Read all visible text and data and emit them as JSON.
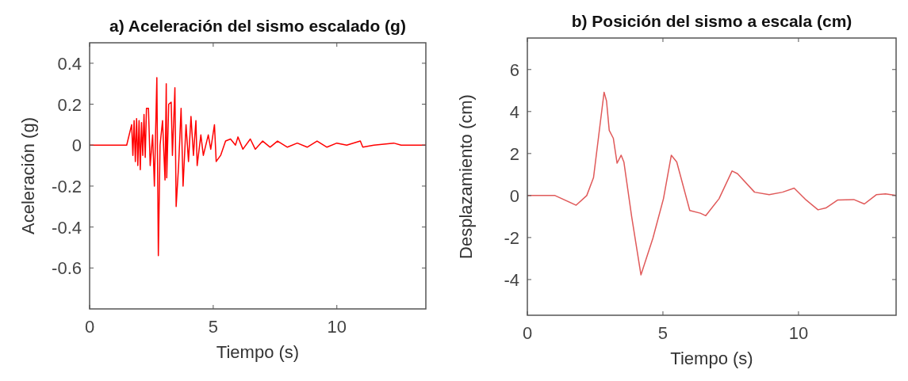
{
  "chart_data": [
    {
      "type": "line",
      "title": "a) Aceleración del sismo escalado (g)",
      "xlabel": "Tiempo (s)",
      "ylabel": "Aceleración (g)",
      "xlim": [
        0,
        13.6
      ],
      "ylim": [
        -0.8,
        0.5
      ],
      "xticks": [
        0,
        5,
        10
      ],
      "yticks": [
        -0.6,
        -0.4,
        -0.2,
        0,
        0.2,
        0.4
      ],
      "series": [
        {
          "color": "#ff0000",
          "x": [
            0,
            1.4,
            1.5,
            1.7,
            1.75,
            1.8,
            1.85,
            1.9,
            1.95,
            2.0,
            2.05,
            2.1,
            2.15,
            2.2,
            2.25,
            2.3,
            2.38,
            2.45,
            2.55,
            2.62,
            2.72,
            2.78,
            2.85,
            2.95,
            3.05,
            3.1,
            3.12,
            3.2,
            3.3,
            3.35,
            3.45,
            3.5,
            3.6,
            3.7,
            3.78,
            3.9,
            4.0,
            4.1,
            4.2,
            4.3,
            4.35,
            4.5,
            4.6,
            4.8,
            4.9,
            5.05,
            5.12,
            5.3,
            5.5,
            5.7,
            5.9,
            6.0,
            6.2,
            6.5,
            6.7,
            7.0,
            7.3,
            7.6,
            8.0,
            8.4,
            8.8,
            9.2,
            9.6,
            10.0,
            10.4,
            10.95,
            11.05,
            11.5,
            12.3,
            12.6,
            13.6
          ],
          "values": [
            0,
            0,
            0,
            0.1,
            -0.05,
            0.12,
            -0.08,
            0.13,
            -0.1,
            0.12,
            -0.12,
            0.11,
            -0.05,
            0.15,
            -0.06,
            0.18,
            0.18,
            -0.1,
            0.05,
            -0.2,
            0.33,
            -0.54,
            0,
            0.12,
            -0.17,
            0.3,
            -0.16,
            0.2,
            0.21,
            -0.05,
            0.28,
            -0.3,
            -0.1,
            0.18,
            -0.2,
            0.1,
            -0.08,
            0.14,
            -0.05,
            0.12,
            -0.1,
            0.05,
            -0.05,
            0.05,
            -0.02,
            0.1,
            -0.08,
            -0.05,
            0.02,
            0.03,
            0,
            0.04,
            -0.02,
            0.03,
            -0.02,
            0.02,
            -0.01,
            0.02,
            -0.01,
            0.01,
            -0.01,
            0.02,
            -0.01,
            0.01,
            0,
            0.02,
            -0.01,
            0,
            0.01,
            0,
            0
          ]
        }
      ]
    },
    {
      "type": "line",
      "title": "b) Posición del sismo a escala (cm)",
      "xlabel": "Tiempo (s)",
      "ylabel": "Desplazamiento (cm)",
      "xlim": [
        0,
        13.6
      ],
      "ylim": [
        -5.7,
        7.5
      ],
      "xticks": [
        0,
        5,
        10
      ],
      "yticks": [
        -4,
        -2,
        0,
        2,
        4,
        6
      ],
      "series": [
        {
          "color": "#e05a5a",
          "x": [
            0,
            1.02,
            1.8,
            2.19,
            2.44,
            2.68,
            2.83,
            2.92,
            3.02,
            3.17,
            3.31,
            3.46,
            3.56,
            3.85,
            4.19,
            4.63,
            5.02,
            5.31,
            5.51,
            5.99,
            6.38,
            6.58,
            7.07,
            7.55,
            7.75,
            8.38,
            8.92,
            9.41,
            9.84,
            10.28,
            10.72,
            11.01,
            11.45,
            12.04,
            12.43,
            12.87,
            13.21,
            13.6
          ],
          "values": [
            0,
            0,
            -0.46,
            0,
            0.85,
            3.36,
            4.92,
            4.5,
            3.1,
            2.73,
            1.54,
            1.92,
            1.6,
            -1.03,
            -3.78,
            -2.03,
            -0.15,
            1.92,
            1.6,
            -0.71,
            -0.84,
            -0.96,
            -0.15,
            1.17,
            1.04,
            0.16,
            0.04,
            0.16,
            0.35,
            -0.21,
            -0.68,
            -0.59,
            -0.21,
            -0.19,
            -0.4,
            0.04,
            0.08,
            0
          ]
        }
      ]
    }
  ]
}
